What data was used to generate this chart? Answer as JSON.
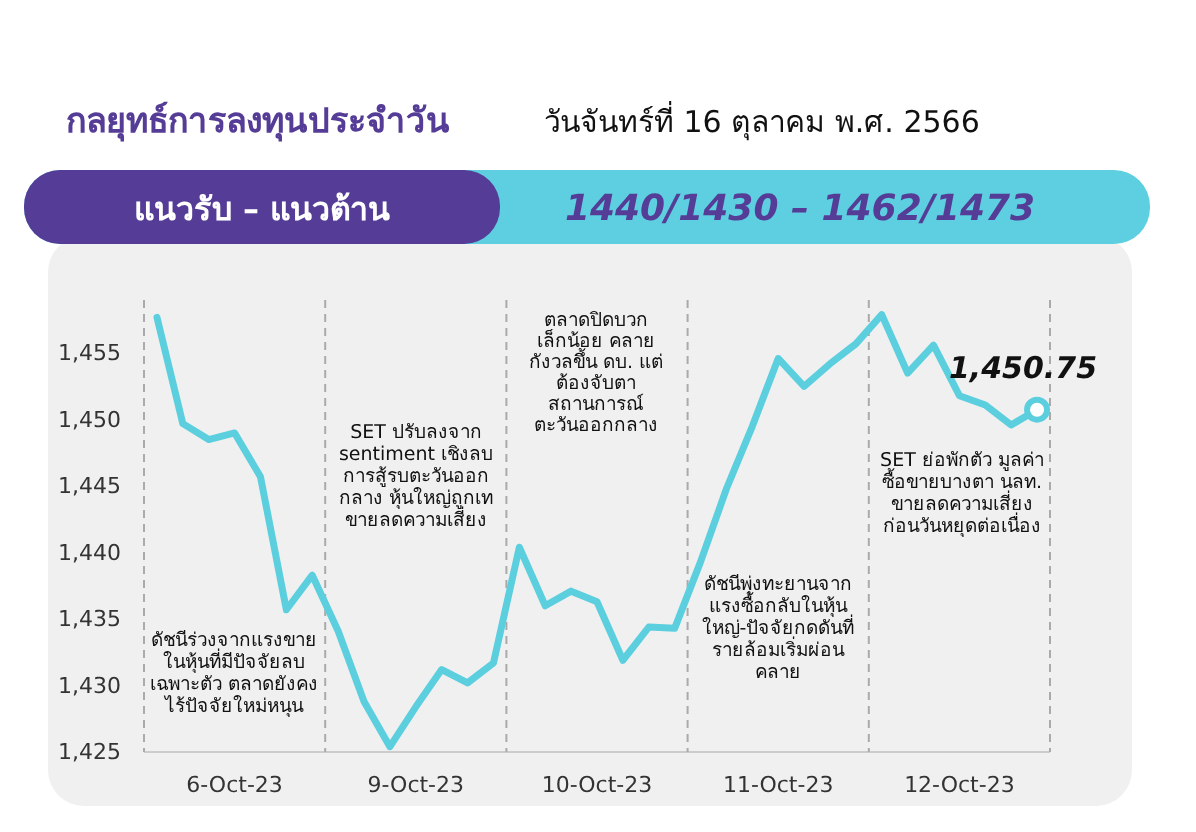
{
  "chart_data": {
    "type": "line",
    "title": "กลยุทธ์การลงทุนประจำวัน",
    "subtitle": "วันจันทร์ที่ 16 ตุลาคม พ.ศ. 2566",
    "categories": [
      null,
      null,
      null,
      "6-Oct-23",
      null,
      null,
      null,
      null,
      null,
      null,
      "9-Oct-23",
      null,
      null,
      null,
      null,
      null,
      null,
      "10-Oct-23",
      null,
      null,
      null,
      null,
      null,
      null,
      "11-Oct-23",
      null,
      null,
      null,
      null,
      null,
      null,
      "12-Oct-23",
      null,
      null,
      null
    ],
    "series": [
      {
        "color": "#5ccfdf",
        "values": [
          1457.7,
          1449.7,
          1448.5,
          1449.0,
          1445.7,
          1435.7,
          1438.3,
          1434.1,
          1428.8,
          1425.4,
          1428.4,
          1431.2,
          1430.2,
          1431.7,
          1440.4,
          1436.0,
          1437.1,
          1436.3,
          1431.9,
          1434.4,
          1434.3,
          1439.3,
          1444.8,
          1449.5,
          1454.6,
          1452.5,
          1454.2,
          1455.7,
          1457.9,
          1453.5,
          1455.6,
          1451.8,
          1451.1,
          1449.6,
          1450.75
        ]
      }
    ],
    "ylim": [
      1425,
      1459
    ],
    "yticks": [
      {
        "value": 1425,
        "label": "1,425"
      },
      {
        "value": 1430,
        "label": "1,430"
      },
      {
        "value": 1435,
        "label": "1,435"
      },
      {
        "value": 1440,
        "label": "1,440"
      },
      {
        "value": 1445,
        "label": "1,445"
      },
      {
        "value": 1450,
        "label": "1,450"
      },
      {
        "value": 1455,
        "label": "1,455"
      }
    ],
    "annotations": [
      "แนวรับ – แนวต้าน",
      "1440/1430 – 1462/1473",
      "ดัชนีร่วงจากแรงขาย\nในหุ้นที่มีปัจจัยลบ\nเฉพาะตัว ตลาดยังคง\nไร้ปัจจัยใหม่หนุน",
      "SET ปรับลงจาก\nsentiment เชิงลบ\nการสู้รบตะวันออก\nกลาง หุ้นใหญ่ถูกเท\nขายลดความเสี่ยง",
      "ตลาดปิดบวก\nเล็กน้อย คลาย\nกังวลขึ้น ดบ. แต่\nต้องจับตา\nสถานการณ์\nตะวันออกกลาง",
      "ดัชนีพุ่งทะยานจาก\nแรงซื้อกลับในหุ้น\nใหญ่-ปัจจัยกดดันที่\nรายล้อมเริ่มผ่อน\nคลาย",
      "SET ย่อพักตัว มูลค่า\nซื้อขายบางตา นลท.\nขายลดความเสี่ยง\nก่อนวันหยุดต่อเนื่อง",
      {
        "text": "1,450.75",
        "y": 1450.75
      }
    ],
    "grid": false,
    "marker": "none",
    "line_style": "solid"
  }
}
